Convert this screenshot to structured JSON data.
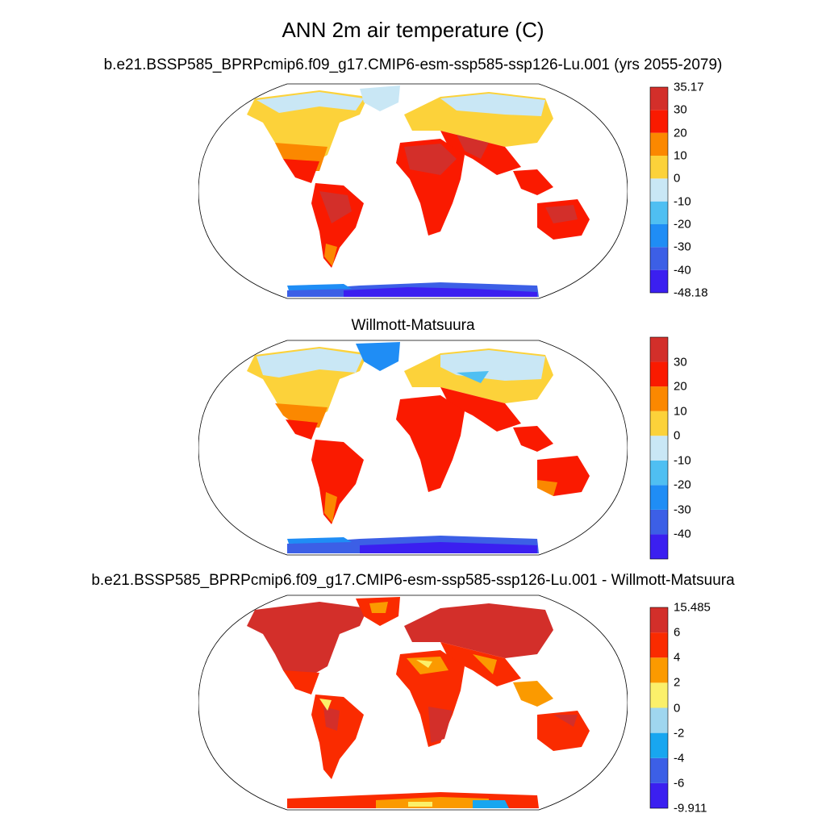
{
  "title": "ANN 2m air temperature (C)",
  "panels": [
    {
      "title": "b.e21.BSSP585_BPRPcmip6.f09_g17.CMIP6-esm-ssp585-ssp126-Lu.001 (yrs 2055-2079)",
      "colorbar": {
        "colors": [
          "#3b1ff0",
          "#3c5fe6",
          "#1f8df5",
          "#4fbff2",
          "#c9e7f5",
          "#fcd23a",
          "#fb8800",
          "#fa1a00",
          "#d32f2a"
        ],
        "labels": [
          "-48.18",
          "-40",
          "-30",
          "-20",
          "-10",
          "0",
          "10",
          "20",
          "30",
          "35.17"
        ]
      }
    },
    {
      "title": "Willmott-Matsuura",
      "colorbar": {
        "colors": [
          "#3b1ff0",
          "#3c5fe6",
          "#1f8df5",
          "#4fbff2",
          "#c9e7f5",
          "#fcd23a",
          "#fb8800",
          "#fa1a00",
          "#d32f2a"
        ],
        "labels": [
          "-40",
          "-30",
          "-20",
          "-10",
          "0",
          "10",
          "20",
          "30"
        ]
      }
    },
    {
      "title": "b.e21.BSSP585_BPRPcmip6.f09_g17.CMIP6-esm-ssp585-ssp126-Lu.001 - Willmott-Matsuura",
      "colorbar": {
        "colors": [
          "#3b1ff0",
          "#3c5fe6",
          "#18a6f0",
          "#9fd6ef",
          "#fbf06a",
          "#fb9a00",
          "#fa2b00",
          "#d32f2a"
        ],
        "labels": [
          "-9.911",
          "-6",
          "-4",
          "-2",
          "0",
          "2",
          "4",
          "6",
          "15.485"
        ]
      }
    }
  ]
}
